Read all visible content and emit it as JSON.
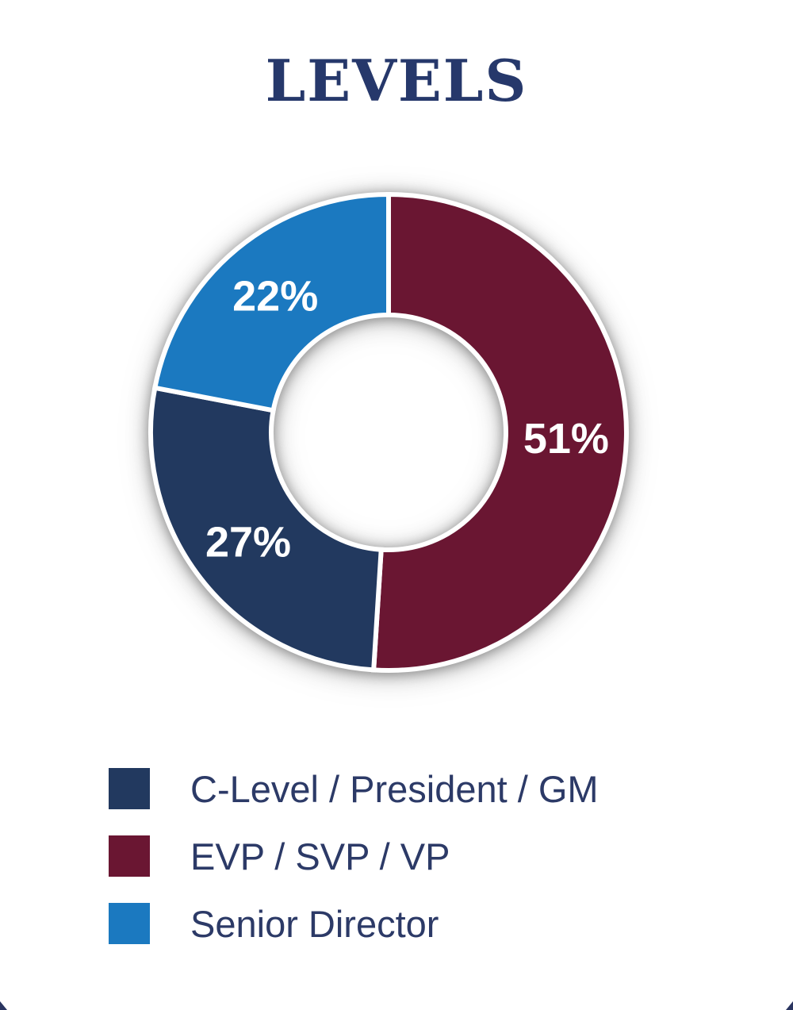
{
  "title": "LEVELS",
  "colors": {
    "background": "#ffffff",
    "title_text": "#26386B",
    "legend_text": "#2C3A67",
    "segment_stroke": "#ffffff",
    "decoration_navy": "#2A3560"
  },
  "chart_data": {
    "type": "pie",
    "subtype": "donut",
    "title": "LEVELS",
    "start_angle_deg": 0,
    "direction": "clockwise",
    "inner_radius_ratio": 0.493,
    "legend_position": "bottom-left",
    "segments": [
      {
        "label": "EVP / SVP / VP",
        "value": 51,
        "pct_label": "51%",
        "color": "#6A1632"
      },
      {
        "label": "C-Level / President / GM",
        "value": 27,
        "pct_label": "27%",
        "color": "#22395F"
      },
      {
        "label": "Senior Director",
        "value": 22,
        "pct_label": "22%",
        "color": "#1B79C0"
      }
    ]
  },
  "legend": {
    "items": [
      {
        "label": "C-Level / President / GM",
        "color": "#22395F"
      },
      {
        "label": "EVP / SVP / VP",
        "color": "#6A1632"
      },
      {
        "label": "Senior Director",
        "color": "#1B79C0"
      }
    ]
  }
}
